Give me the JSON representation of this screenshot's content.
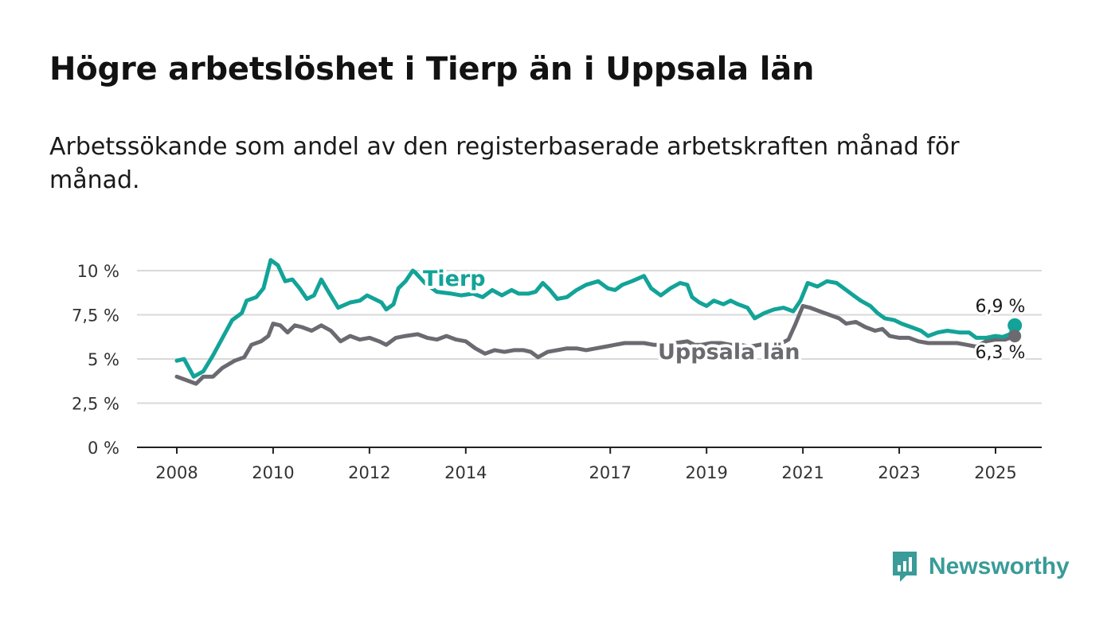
{
  "title": "Högre arbetslöshet i Tierp än i Uppsala län",
  "subtitle": "Arbetssökande som andel av den registerbaserade arbetskraften månad för månad.",
  "logo_text": "Newsworthy",
  "colors": {
    "tierp": "#13a398",
    "uppsala": "#6b6a70",
    "grid": "#d9d9d9",
    "axis": "#222222"
  },
  "chart_data": {
    "type": "line",
    "ylim": [
      0,
      10.5
    ],
    "yticks": [
      0,
      2.5,
      5,
      7.5,
      10
    ],
    "ytick_labels": [
      "0 %",
      "2,5 %",
      "5 %",
      "7,5 %",
      "10 %"
    ],
    "xticks": [
      2008,
      2010,
      2012,
      2014,
      2017,
      2019,
      2021,
      2023,
      2025
    ],
    "xtick_labels": [
      "2008",
      "2010",
      "2012",
      "2014",
      "2017",
      "2019",
      "2021",
      "2023",
      "2025"
    ],
    "grid": true,
    "series": [
      {
        "name": "Tierp",
        "end_label": "6,9 %",
        "points": [
          [
            2008.0,
            4.9
          ],
          [
            2008.15,
            5.0
          ],
          [
            2008.35,
            4.0
          ],
          [
            2008.55,
            4.3
          ],
          [
            2008.75,
            5.2
          ],
          [
            2008.95,
            6.2
          ],
          [
            2009.15,
            7.2
          ],
          [
            2009.35,
            7.6
          ],
          [
            2009.45,
            8.3
          ],
          [
            2009.65,
            8.5
          ],
          [
            2009.8,
            9.0
          ],
          [
            2009.95,
            10.6
          ],
          [
            2010.1,
            10.3
          ],
          [
            2010.25,
            9.4
          ],
          [
            2010.4,
            9.5
          ],
          [
            2010.55,
            9.0
          ],
          [
            2010.7,
            8.4
          ],
          [
            2010.85,
            8.6
          ],
          [
            2011.0,
            9.5
          ],
          [
            2011.15,
            8.8
          ],
          [
            2011.35,
            7.9
          ],
          [
            2011.6,
            8.2
          ],
          [
            2011.8,
            8.3
          ],
          [
            2011.95,
            8.6
          ],
          [
            2012.1,
            8.4
          ],
          [
            2012.25,
            8.2
          ],
          [
            2012.35,
            7.8
          ],
          [
            2012.5,
            8.1
          ],
          [
            2012.6,
            9.0
          ],
          [
            2012.75,
            9.4
          ],
          [
            2012.9,
            10.0
          ],
          [
            2012.95,
            9.9
          ],
          [
            2013.15,
            9.3
          ],
          [
            2013.4,
            8.8
          ],
          [
            2013.7,
            8.7
          ],
          [
            2013.9,
            8.6
          ],
          [
            2014.15,
            8.7
          ],
          [
            2014.35,
            8.5
          ],
          [
            2014.55,
            8.9
          ],
          [
            2014.75,
            8.6
          ],
          [
            2014.95,
            8.9
          ],
          [
            2015.1,
            8.7
          ],
          [
            2015.3,
            8.7
          ],
          [
            2015.45,
            8.8
          ],
          [
            2015.6,
            9.3
          ],
          [
            2015.75,
            8.9
          ],
          [
            2015.9,
            8.4
          ],
          [
            2016.1,
            8.5
          ],
          [
            2016.3,
            8.9
          ],
          [
            2016.5,
            9.2
          ],
          [
            2016.75,
            9.4
          ],
          [
            2016.95,
            9.0
          ],
          [
            2017.1,
            8.9
          ],
          [
            2017.25,
            9.2
          ],
          [
            2017.45,
            9.4
          ],
          [
            2017.7,
            9.7
          ],
          [
            2017.85,
            9.0
          ],
          [
            2018.05,
            8.6
          ],
          [
            2018.25,
            9.0
          ],
          [
            2018.45,
            9.3
          ],
          [
            2018.6,
            9.2
          ],
          [
            2018.7,
            8.5
          ],
          [
            2018.85,
            8.2
          ],
          [
            2019.0,
            8.0
          ],
          [
            2019.15,
            8.3
          ],
          [
            2019.35,
            8.1
          ],
          [
            2019.5,
            8.3
          ],
          [
            2019.65,
            8.1
          ],
          [
            2019.85,
            7.9
          ],
          [
            2020.0,
            7.3
          ],
          [
            2020.2,
            7.6
          ],
          [
            2020.4,
            7.8
          ],
          [
            2020.6,
            7.9
          ],
          [
            2020.8,
            7.7
          ],
          [
            2020.95,
            8.3
          ],
          [
            2021.1,
            9.3
          ],
          [
            2021.3,
            9.1
          ],
          [
            2021.5,
            9.4
          ],
          [
            2021.7,
            9.3
          ],
          [
            2021.9,
            8.9
          ],
          [
            2022.05,
            8.6
          ],
          [
            2022.2,
            8.3
          ],
          [
            2022.4,
            8.0
          ],
          [
            2022.55,
            7.6
          ],
          [
            2022.7,
            7.3
          ],
          [
            2022.9,
            7.2
          ],
          [
            2023.05,
            7.0
          ],
          [
            2023.25,
            6.8
          ],
          [
            2023.45,
            6.6
          ],
          [
            2023.6,
            6.3
          ],
          [
            2023.8,
            6.5
          ],
          [
            2024.0,
            6.6
          ],
          [
            2024.25,
            6.5
          ],
          [
            2024.45,
            6.5
          ],
          [
            2024.6,
            6.2
          ],
          [
            2024.8,
            6.2
          ],
          [
            2025.0,
            6.3
          ],
          [
            2025.15,
            6.25
          ],
          [
            2025.3,
            6.4
          ],
          [
            2025.4,
            6.9
          ]
        ]
      },
      {
        "name": "Uppsala län",
        "end_label": "6,3 %",
        "points": [
          [
            2008.0,
            4.0
          ],
          [
            2008.2,
            3.8
          ],
          [
            2008.4,
            3.6
          ],
          [
            2008.55,
            4.0
          ],
          [
            2008.75,
            4.0
          ],
          [
            2008.95,
            4.5
          ],
          [
            2009.2,
            4.9
          ],
          [
            2009.4,
            5.1
          ],
          [
            2009.55,
            5.8
          ],
          [
            2009.75,
            6.0
          ],
          [
            2009.9,
            6.3
          ],
          [
            2010.0,
            7.0
          ],
          [
            2010.15,
            6.9
          ],
          [
            2010.3,
            6.5
          ],
          [
            2010.45,
            6.9
          ],
          [
            2010.6,
            6.8
          ],
          [
            2010.8,
            6.6
          ],
          [
            2011.0,
            6.9
          ],
          [
            2011.2,
            6.6
          ],
          [
            2011.4,
            6.0
          ],
          [
            2011.6,
            6.3
          ],
          [
            2011.8,
            6.1
          ],
          [
            2012.0,
            6.2
          ],
          [
            2012.2,
            6.0
          ],
          [
            2012.35,
            5.8
          ],
          [
            2012.55,
            6.2
          ],
          [
            2012.75,
            6.3
          ],
          [
            2013.0,
            6.4
          ],
          [
            2013.2,
            6.2
          ],
          [
            2013.4,
            6.1
          ],
          [
            2013.6,
            6.3
          ],
          [
            2013.8,
            6.1
          ],
          [
            2014.0,
            6.0
          ],
          [
            2014.2,
            5.6
          ],
          [
            2014.4,
            5.3
          ],
          [
            2014.6,
            5.5
          ],
          [
            2014.8,
            5.4
          ],
          [
            2015.0,
            5.5
          ],
          [
            2015.2,
            5.5
          ],
          [
            2015.35,
            5.4
          ],
          [
            2015.5,
            5.1
          ],
          [
            2015.7,
            5.4
          ],
          [
            2015.9,
            5.5
          ],
          [
            2016.1,
            5.6
          ],
          [
            2016.3,
            5.6
          ],
          [
            2016.5,
            5.5
          ],
          [
            2016.7,
            5.6
          ],
          [
            2016.9,
            5.7
          ],
          [
            2017.1,
            5.8
          ],
          [
            2017.3,
            5.9
          ],
          [
            2017.5,
            5.9
          ],
          [
            2017.7,
            5.9
          ],
          [
            2017.9,
            5.8
          ],
          [
            2018.1,
            5.8
          ],
          [
            2018.35,
            5.9
          ],
          [
            2018.6,
            6.0
          ],
          [
            2018.75,
            5.8
          ],
          [
            2018.9,
            5.8
          ],
          [
            2019.1,
            5.9
          ],
          [
            2019.3,
            5.9
          ],
          [
            2019.5,
            5.8
          ],
          [
            2019.7,
            5.8
          ],
          [
            2019.9,
            5.7
          ],
          [
            2020.1,
            5.8
          ],
          [
            2020.3,
            5.9
          ],
          [
            2020.5,
            5.8
          ],
          [
            2020.7,
            6.1
          ],
          [
            2020.85,
            7.0
          ],
          [
            2021.0,
            8.0
          ],
          [
            2021.15,
            7.9
          ],
          [
            2021.35,
            7.7
          ],
          [
            2021.55,
            7.5
          ],
          [
            2021.75,
            7.3
          ],
          [
            2021.9,
            7.0
          ],
          [
            2022.1,
            7.1
          ],
          [
            2022.3,
            6.8
          ],
          [
            2022.5,
            6.6
          ],
          [
            2022.65,
            6.7
          ],
          [
            2022.8,
            6.3
          ],
          [
            2023.0,
            6.2
          ],
          [
            2023.2,
            6.2
          ],
          [
            2023.4,
            6.0
          ],
          [
            2023.6,
            5.9
          ],
          [
            2023.8,
            5.9
          ],
          [
            2024.0,
            5.9
          ],
          [
            2024.2,
            5.9
          ],
          [
            2024.4,
            5.8
          ],
          [
            2024.6,
            5.7
          ],
          [
            2024.8,
            6.0
          ],
          [
            2025.0,
            6.1
          ],
          [
            2025.2,
            6.1
          ],
          [
            2025.4,
            6.3
          ]
        ]
      }
    ],
    "labels": [
      {
        "text": "Tierp",
        "series": "Tierp"
      },
      {
        "text": "Uppsala län",
        "series": "Uppsala län"
      }
    ]
  }
}
